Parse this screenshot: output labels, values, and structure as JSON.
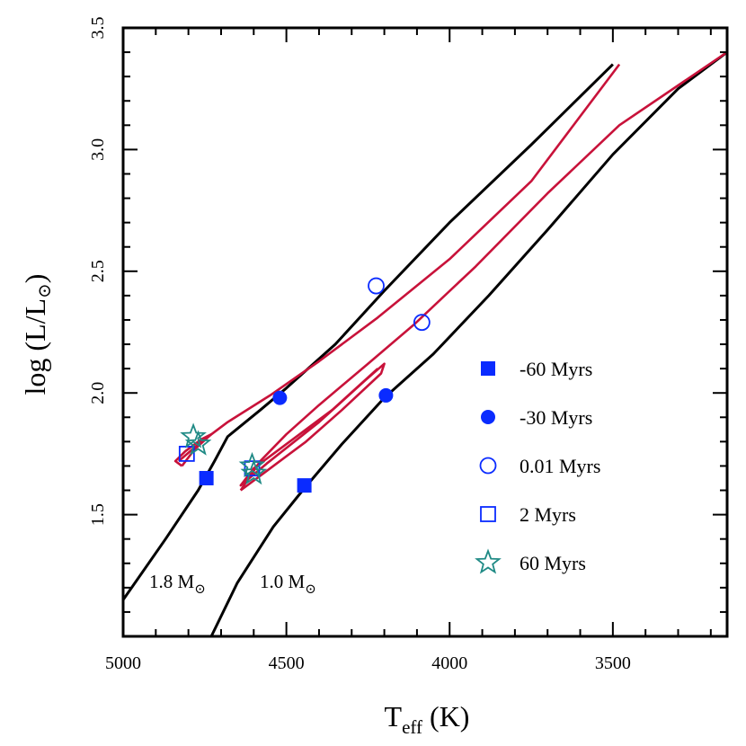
{
  "chart_data": {
    "type": "line",
    "xlabel_main": "T",
    "xlabel_sub": "eff",
    "xlabel_unit": " (K)",
    "ylabel_main": "log (L/L",
    "ylabel_close": ")",
    "xlim": [
      5000,
      3150
    ],
    "ylim": [
      1.0,
      3.5
    ],
    "x_ticks": [
      5000,
      4500,
      4000,
      3500
    ],
    "x_tick_labels": [
      "5000",
      "4500",
      "4000",
      "3500"
    ],
    "y_ticks": [
      1.5,
      2.0,
      2.5,
      3.0,
      3.5
    ],
    "y_tick_labels": [
      "1.5",
      "2.0",
      "2.5",
      "3.0",
      "3.5"
    ],
    "grid": false,
    "legend_position": "lower-right",
    "colors": {
      "track": "#000000",
      "perturbed": "#c8123a",
      "marker_blue": "#0a2bff",
      "marker_teal": "#1f8a85"
    },
    "mass_labels": [
      {
        "text": "1.8 M",
        "teff": 4920,
        "logL": 1.19
      },
      {
        "text": "1.0 M",
        "teff": 4540,
        "logL": 1.19
      }
    ],
    "series": [
      {
        "group": "black",
        "points": [
          [
            5000,
            1.15
          ],
          [
            4870,
            1.4
          ],
          [
            4770,
            1.6
          ],
          [
            4720,
            1.72
          ],
          [
            4680,
            1.82
          ],
          [
            4580,
            1.93
          ],
          [
            4500,
            2.02
          ],
          [
            4350,
            2.2
          ],
          [
            4200,
            2.42
          ],
          [
            4000,
            2.7
          ],
          [
            3750,
            3.02
          ],
          [
            3500,
            3.35
          ]
        ]
      },
      {
        "group": "black",
        "points": [
          [
            4730,
            1.0
          ],
          [
            4650,
            1.22
          ],
          [
            4540,
            1.45
          ],
          [
            4450,
            1.6
          ],
          [
            4330,
            1.79
          ],
          [
            4200,
            1.98
          ],
          [
            4050,
            2.16
          ],
          [
            3880,
            2.4
          ],
          [
            3700,
            2.67
          ],
          [
            3500,
            2.98
          ],
          [
            3300,
            3.25
          ],
          [
            3150,
            3.4
          ]
        ]
      },
      {
        "group": "red",
        "points": [
          [
            4830,
            1.72
          ],
          [
            4760,
            1.8
          ],
          [
            4680,
            1.88
          ],
          [
            4550,
            1.99
          ],
          [
            4400,
            2.13
          ],
          [
            4220,
            2.31
          ],
          [
            4000,
            2.55
          ],
          [
            3750,
            2.87
          ],
          [
            3480,
            3.35
          ]
        ]
      },
      {
        "group": "red",
        "points": [
          [
            4820,
            1.7
          ],
          [
            4780,
            1.77
          ],
          [
            4730,
            1.83
          ],
          [
            4760,
            1.81
          ],
          [
            4810,
            1.76
          ],
          [
            4840,
            1.72
          ],
          [
            4820,
            1.7
          ]
        ]
      },
      {
        "group": "red",
        "points": [
          [
            4640,
            1.6
          ],
          [
            4580,
            1.72
          ],
          [
            4500,
            1.83
          ],
          [
            4400,
            1.95
          ],
          [
            4250,
            2.12
          ],
          [
            4110,
            2.28
          ],
          [
            3920,
            2.52
          ],
          [
            3700,
            2.82
          ],
          [
            3480,
            3.1
          ],
          [
            3150,
            3.4
          ]
        ]
      },
      {
        "group": "red",
        "points": [
          [
            4640,
            1.6
          ],
          [
            4560,
            1.68
          ],
          [
            4440,
            1.8
          ],
          [
            4330,
            1.93
          ],
          [
            4210,
            2.08
          ],
          [
            4200,
            2.12
          ],
          [
            4260,
            2.05
          ],
          [
            4400,
            1.88
          ],
          [
            4560,
            1.71
          ],
          [
            4640,
            1.62
          ],
          [
            4600,
            1.69
          ],
          [
            4480,
            1.81
          ],
          [
            4360,
            1.93
          ],
          [
            4220,
            2.1
          ]
        ]
      }
    ],
    "legend": [
      {
        "label": "-60 Myrs",
        "marker": "square-filled",
        "color": "#0a2bff"
      },
      {
        "label": "-30 Myrs",
        "marker": "circle-filled",
        "color": "#0a2bff"
      },
      {
        "label": "0.01 Myrs",
        "marker": "circle-open",
        "color": "#0a2bff"
      },
      {
        "label": "2 Myrs",
        "marker": "square-open",
        "color": "#0a2bff"
      },
      {
        "label": "60 Myrs",
        "marker": "star-open",
        "color": "#1f8a85"
      }
    ],
    "markers": [
      {
        "marker": "square-filled",
        "teff": 4745,
        "logL": 1.65
      },
      {
        "marker": "square-filled",
        "teff": 4445,
        "logL": 1.62
      },
      {
        "marker": "circle-filled",
        "teff": 4520,
        "logL": 1.98
      },
      {
        "marker": "circle-filled",
        "teff": 4195,
        "logL": 1.99
      },
      {
        "marker": "circle-open",
        "teff": 4225,
        "logL": 2.44
      },
      {
        "marker": "circle-open",
        "teff": 4085,
        "logL": 2.29
      },
      {
        "marker": "square-open",
        "teff": 4805,
        "logL": 1.75
      },
      {
        "marker": "square-open",
        "teff": 4605,
        "logL": 1.69
      },
      {
        "marker": "star-open",
        "teff": 4785,
        "logL": 1.82
      },
      {
        "marker": "star-open",
        "teff": 4770,
        "logL": 1.79
      },
      {
        "marker": "star-open",
        "teff": 4605,
        "logL": 1.7
      },
      {
        "marker": "star-open",
        "teff": 4600,
        "logL": 1.67
      }
    ]
  }
}
